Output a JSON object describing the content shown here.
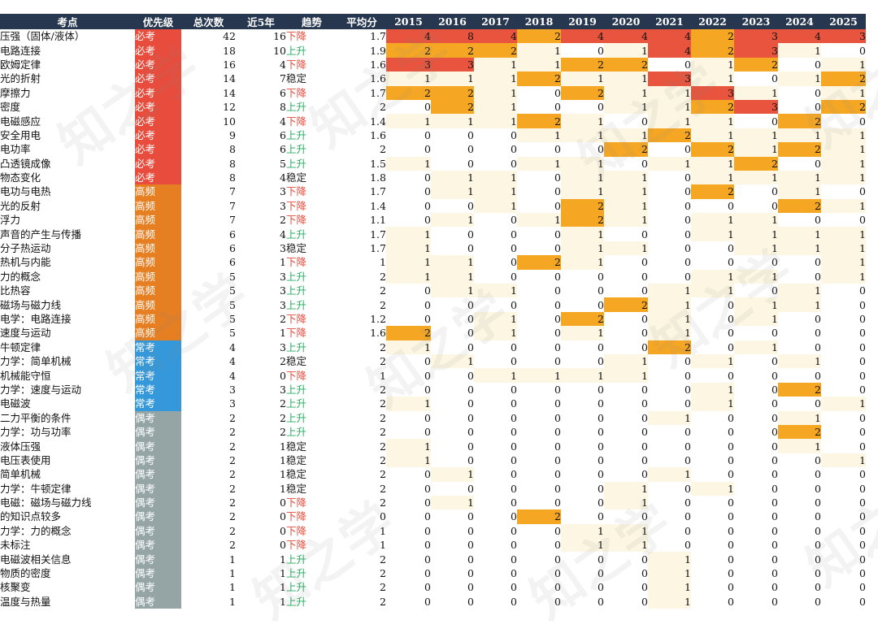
{
  "headers": [
    "考点",
    "优先级",
    "总次数",
    "近5年",
    "趋势",
    "平均分",
    "2015",
    "2016",
    "2017",
    "2018",
    "2019",
    "2020",
    "2021",
    "2022",
    "2023",
    "2024",
    "2025"
  ],
  "colors": {
    "header_bg": "#26374f",
    "priority": {
      "必考": "#e74c3c",
      "高频": "#e67e22",
      "常考": "#3498db",
      "偶考": "#95a5a6"
    },
    "trend": {
      "下降": "#e74c3c",
      "上升": "#27ae60",
      "稳定": "#222222"
    },
    "heat": {
      "none": "#ffffff",
      "low": "#fdf6e3",
      "mid": "#f5a623",
      "high": "#e8543d"
    }
  },
  "watermark": "知之学",
  "rows": [
    {
      "name": "压强（固体/液体）",
      "priority": "必考",
      "total": "42",
      "recent": "16",
      "trend": "下降",
      "avg": "1.7",
      "years": [
        "4",
        "8",
        "4",
        "2",
        "4",
        "4",
        "4",
        "2",
        "3",
        "4",
        "3"
      ]
    },
    {
      "name": "电路连接",
      "priority": "必考",
      "total": "18",
      "recent": "10",
      "trend": "上升",
      "avg": "1.9",
      "years": [
        "2",
        "2",
        "2",
        "1",
        "0",
        "1",
        "4",
        "2",
        "3",
        "1",
        "0"
      ]
    },
    {
      "name": "欧姆定律",
      "priority": "必考",
      "total": "16",
      "recent": "4",
      "trend": "下降",
      "avg": "1.6",
      "years": [
        "3",
        "3",
        "1",
        "1",
        "2",
        "2",
        "0",
        "1",
        "2",
        "0",
        "1"
      ]
    },
    {
      "name": "光的折射",
      "priority": "必考",
      "total": "14",
      "recent": "7",
      "trend": "稳定",
      "avg": "1.6",
      "years": [
        "1",
        "1",
        "1",
        "2",
        "1",
        "1",
        "3",
        "1",
        "0",
        "1",
        "2"
      ]
    },
    {
      "name": "摩擦力",
      "priority": "必考",
      "total": "14",
      "recent": "6",
      "trend": "下降",
      "avg": "1.7",
      "years": [
        "2",
        "2",
        "1",
        "0",
        "2",
        "1",
        "1",
        "3",
        "1",
        "0",
        "1"
      ]
    },
    {
      "name": "密度",
      "priority": "必考",
      "total": "12",
      "recent": "8",
      "trend": "上升",
      "avg": "2",
      "years": [
        "0",
        "2",
        "1",
        "0",
        "0",
        "1",
        "1",
        "2",
        "3",
        "0",
        "2"
      ]
    },
    {
      "name": "电磁感应",
      "priority": "必考",
      "total": "10",
      "recent": "4",
      "trend": "下降",
      "avg": "1.4",
      "years": [
        "1",
        "1",
        "1",
        "2",
        "1",
        "0",
        "1",
        "1",
        "0",
        "2",
        "0"
      ]
    },
    {
      "name": "安全用电",
      "priority": "必考",
      "total": "9",
      "recent": "6",
      "trend": "上升",
      "avg": "1.6",
      "years": [
        "0",
        "0",
        "0",
        "1",
        "1",
        "1",
        "2",
        "1",
        "1",
        "1",
        "1"
      ]
    },
    {
      "name": "电功率",
      "priority": "必考",
      "total": "8",
      "recent": "6",
      "trend": "上升",
      "avg": "2",
      "years": [
        "0",
        "0",
        "0",
        "0",
        "0",
        "2",
        "0",
        "2",
        "1",
        "2",
        "1"
      ]
    },
    {
      "name": "凸透镜成像",
      "priority": "必考",
      "total": "8",
      "recent": "5",
      "trend": "上升",
      "avg": "1.5",
      "years": [
        "1",
        "0",
        "0",
        "1",
        "1",
        "0",
        "1",
        "1",
        "2",
        "0",
        "1"
      ]
    },
    {
      "name": "物态变化",
      "priority": "必考",
      "total": "8",
      "recent": "4",
      "trend": "稳定",
      "avg": "1.8",
      "years": [
        "0",
        "1",
        "1",
        "0",
        "1",
        "1",
        "0",
        "1",
        "1",
        "1",
        "1"
      ]
    },
    {
      "name": "电功与电热",
      "priority": "高频",
      "total": "7",
      "recent": "3",
      "trend": "下降",
      "avg": "1.7",
      "years": [
        "0",
        "1",
        "1",
        "0",
        "1",
        "1",
        "0",
        "2",
        "0",
        "1",
        "0"
      ]
    },
    {
      "name": "光的反射",
      "priority": "高频",
      "total": "7",
      "recent": "3",
      "trend": "下降",
      "avg": "1.4",
      "years": [
        "0",
        "0",
        "1",
        "0",
        "2",
        "1",
        "0",
        "0",
        "0",
        "2",
        "1"
      ]
    },
    {
      "name": "浮力",
      "priority": "高频",
      "total": "7",
      "recent": "2",
      "trend": "下降",
      "avg": "1.1",
      "years": [
        "0",
        "1",
        "0",
        "1",
        "2",
        "1",
        "0",
        "1",
        "1",
        "0",
        "0"
      ]
    },
    {
      "name": "声音的产生与传播",
      "priority": "高频",
      "total": "6",
      "recent": "4",
      "trend": "上升",
      "avg": "1.7",
      "years": [
        "1",
        "0",
        "0",
        "0",
        "1",
        "0",
        "0",
        "1",
        "1",
        "1",
        "1"
      ]
    },
    {
      "name": "分子热运动",
      "priority": "高频",
      "total": "6",
      "recent": "3",
      "trend": "稳定",
      "avg": "1.7",
      "years": [
        "1",
        "0",
        "0",
        "0",
        "1",
        "1",
        "0",
        "0",
        "1",
        "1",
        "1"
      ]
    },
    {
      "name": "热机与内能",
      "priority": "高频",
      "total": "6",
      "recent": "1",
      "trend": "下降",
      "avg": "1",
      "years": [
        "1",
        "1",
        "0",
        "2",
        "1",
        "0",
        "0",
        "0",
        "0",
        "0",
        "1"
      ]
    },
    {
      "name": "力的概念",
      "priority": "高频",
      "total": "5",
      "recent": "3",
      "trend": "上升",
      "avg": "2",
      "years": [
        "1",
        "1",
        "0",
        "0",
        "0",
        "0",
        "0",
        "1",
        "1",
        "0",
        "1"
      ]
    },
    {
      "name": "比热容",
      "priority": "高频",
      "total": "5",
      "recent": "3",
      "trend": "上升",
      "avg": "2",
      "years": [
        "0",
        "1",
        "1",
        "0",
        "0",
        "0",
        "1",
        "1",
        "0",
        "1",
        "0"
      ]
    },
    {
      "name": "磁场与磁力线",
      "priority": "高频",
      "total": "5",
      "recent": "3",
      "trend": "上升",
      "avg": "2",
      "years": [
        "0",
        "0",
        "0",
        "0",
        "0",
        "2",
        "1",
        "0",
        "1",
        "1",
        "0"
      ]
    },
    {
      "name": "电学：电路连接",
      "priority": "高频",
      "total": "5",
      "recent": "2",
      "trend": "下降",
      "avg": "1.2",
      "years": [
        "0",
        "0",
        "1",
        "0",
        "2",
        "0",
        "1",
        "0",
        "1",
        "0",
        "0"
      ]
    },
    {
      "name": "速度与运动",
      "priority": "高频",
      "total": "5",
      "recent": "1",
      "trend": "下降",
      "avg": "1.6",
      "years": [
        "2",
        "0",
        "1",
        "0",
        "1",
        "0",
        "1",
        "0",
        "0",
        "0",
        "0"
      ]
    },
    {
      "name": "牛顿定律",
      "priority": "常考",
      "total": "4",
      "recent": "3",
      "trend": "上升",
      "avg": "2",
      "years": [
        "1",
        "0",
        "0",
        "0",
        "0",
        "0",
        "2",
        "0",
        "1",
        "0",
        "0"
      ]
    },
    {
      "name": "力学：简单机械",
      "priority": "常考",
      "total": "4",
      "recent": "2",
      "trend": "稳定",
      "avg": "2",
      "years": [
        "0",
        "1",
        "0",
        "0",
        "0",
        "1",
        "0",
        "1",
        "0",
        "1",
        "0"
      ]
    },
    {
      "name": "机械能守恒",
      "priority": "常考",
      "total": "4",
      "recent": "0",
      "trend": "下降",
      "avg": "1",
      "years": [
        "0",
        "0",
        "1",
        "1",
        "1",
        "1",
        "0",
        "0",
        "0",
        "0",
        "0"
      ]
    },
    {
      "name": "力学：速度与运动",
      "priority": "常考",
      "total": "3",
      "recent": "3",
      "trend": "上升",
      "avg": "2",
      "years": [
        "0",
        "0",
        "0",
        "0",
        "0",
        "0",
        "0",
        "1",
        "0",
        "2",
        "0"
      ]
    },
    {
      "name": "电磁波",
      "priority": "常考",
      "total": "3",
      "recent": "2",
      "trend": "上升",
      "avg": "2",
      "years": [
        "1",
        "0",
        "0",
        "0",
        "0",
        "0",
        "0",
        "1",
        "0",
        "0",
        "1"
      ]
    },
    {
      "name": "二力平衡的条件",
      "priority": "偶考",
      "total": "2",
      "recent": "2",
      "trend": "上升",
      "avg": "2",
      "years": [
        "0",
        "0",
        "0",
        "0",
        "0",
        "0",
        "1",
        "0",
        "0",
        "1",
        "0"
      ]
    },
    {
      "name": "力学：功与功率",
      "priority": "偶考",
      "total": "2",
      "recent": "2",
      "trend": "上升",
      "avg": "2",
      "years": [
        "0",
        "0",
        "0",
        "0",
        "0",
        "0",
        "0",
        "0",
        "0",
        "2",
        "0"
      ]
    },
    {
      "name": "液体压强",
      "priority": "偶考",
      "total": "2",
      "recent": "1",
      "trend": "稳定",
      "avg": "2",
      "years": [
        "1",
        "0",
        "0",
        "0",
        "0",
        "0",
        "0",
        "0",
        "0",
        "1",
        "0"
      ]
    },
    {
      "name": "电压表使用",
      "priority": "偶考",
      "total": "2",
      "recent": "1",
      "trend": "稳定",
      "avg": "2",
      "years": [
        "1",
        "0",
        "0",
        "0",
        "0",
        "0",
        "0",
        "0",
        "0",
        "0",
        "1"
      ]
    },
    {
      "name": "简单机械",
      "priority": "偶考",
      "total": "2",
      "recent": "1",
      "trend": "稳定",
      "avg": "2",
      "years": [
        "0",
        "1",
        "0",
        "0",
        "0",
        "0",
        "1",
        "0",
        "0",
        "0",
        "0"
      ]
    },
    {
      "name": "力学：牛顿定律",
      "priority": "偶考",
      "total": "2",
      "recent": "1",
      "trend": "稳定",
      "avg": "2",
      "years": [
        "0",
        "0",
        "0",
        "0",
        "0",
        "1",
        "0",
        "1",
        "0",
        "0",
        "0"
      ]
    },
    {
      "name": "电磁：磁场与磁力线",
      "priority": "偶考",
      "total": "2",
      "recent": "0",
      "trend": "下降",
      "avg": "2",
      "years": [
        "0",
        "1",
        "0",
        "0",
        "0",
        "1",
        "0",
        "0",
        "0",
        "0",
        "0"
      ]
    },
    {
      "name": "的知识点较多",
      "priority": "偶考",
      "total": "2",
      "recent": "0",
      "trend": "下降",
      "avg": "0",
      "years": [
        "0",
        "0",
        "0",
        "2",
        "0",
        "0",
        "0",
        "0",
        "0",
        "0",
        "0"
      ]
    },
    {
      "name": "力学：力的概念",
      "priority": "偶考",
      "total": "2",
      "recent": "0",
      "trend": "下降",
      "avg": "1",
      "years": [
        "0",
        "0",
        "0",
        "0",
        "1",
        "1",
        "0",
        "0",
        "0",
        "0",
        "0"
      ]
    },
    {
      "name": "未标注",
      "priority": "偶考",
      "total": "2",
      "recent": "0",
      "trend": "下降",
      "avg": "1",
      "years": [
        "0",
        "0",
        "0",
        "0",
        "1",
        "1",
        "0",
        "0",
        "0",
        "0",
        "0"
      ]
    },
    {
      "name": "电磁波相关信息",
      "priority": "偶考",
      "total": "1",
      "recent": "1",
      "trend": "上升",
      "avg": "2",
      "years": [
        "0",
        "0",
        "0",
        "0",
        "0",
        "0",
        "1",
        "0",
        "0",
        "0",
        "0"
      ]
    },
    {
      "name": "物质的密度",
      "priority": "偶考",
      "total": "1",
      "recent": "1",
      "trend": "上升",
      "avg": "2",
      "years": [
        "0",
        "0",
        "0",
        "0",
        "0",
        "0",
        "1",
        "0",
        "0",
        "0",
        "0"
      ]
    },
    {
      "name": "核聚变",
      "priority": "偶考",
      "total": "1",
      "recent": "1",
      "trend": "上升",
      "avg": "2",
      "years": [
        "0",
        "0",
        "0",
        "0",
        "0",
        "0",
        "1",
        "0",
        "0",
        "0",
        "0"
      ]
    },
    {
      "name": "温度与热量",
      "priority": "偶考",
      "total": "1",
      "recent": "1",
      "trend": "上升",
      "avg": "2",
      "years": [
        "0",
        "0",
        "0",
        "0",
        "0",
        "0",
        "1",
        "0",
        "0",
        "0",
        "0"
      ]
    }
  ]
}
